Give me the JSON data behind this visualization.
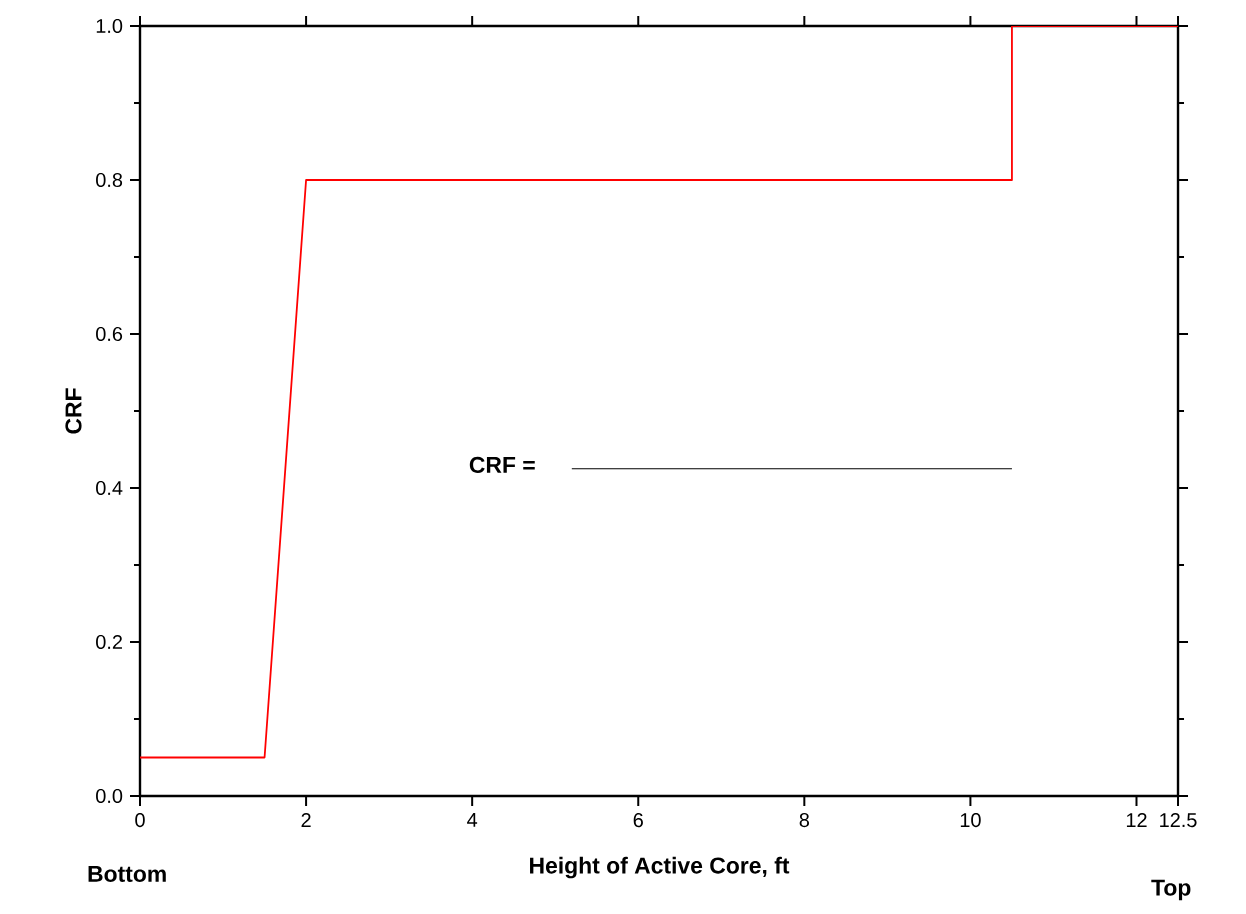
{
  "chart_data": {
    "type": "line",
    "xlabel": "Height of Active Core, ft",
    "ylabel": "CRF",
    "series": [
      {
        "x": [
          0,
          1.5,
          2,
          10.5,
          10.5,
          12.5
        ],
        "values": [
          0.05,
          0.05,
          0.8,
          0.8,
          1.0,
          1.0
        ],
        "color": "#ff0000"
      },
      {
        "x": [
          5.2,
          10.5
        ],
        "values": [
          0.425,
          0.425
        ],
        "color": "#000000"
      }
    ],
    "xlim": [
      0,
      12.5
    ],
    "ylim": [
      0,
      1.0
    ],
    "xticks": [
      0,
      2,
      4,
      6,
      8,
      10,
      12,
      {
        "value": 12.5,
        "label": "12.5"
      }
    ],
    "yticks": [
      {
        "value": 0,
        "label": "0.0"
      },
      {
        "value": 0.2,
        "label": "0.2"
      },
      {
        "value": 0.4,
        "label": "0.4"
      },
      {
        "value": 0.6,
        "label": "0.6"
      },
      {
        "value": 0.8,
        "label": "0.8"
      },
      {
        "value": 1.0,
        "label": "1.0"
      }
    ],
    "grid": false,
    "marker": "none",
    "line_style": "solid",
    "annotations": [
      "CRF =",
      "Bottom",
      "Top"
    ]
  }
}
